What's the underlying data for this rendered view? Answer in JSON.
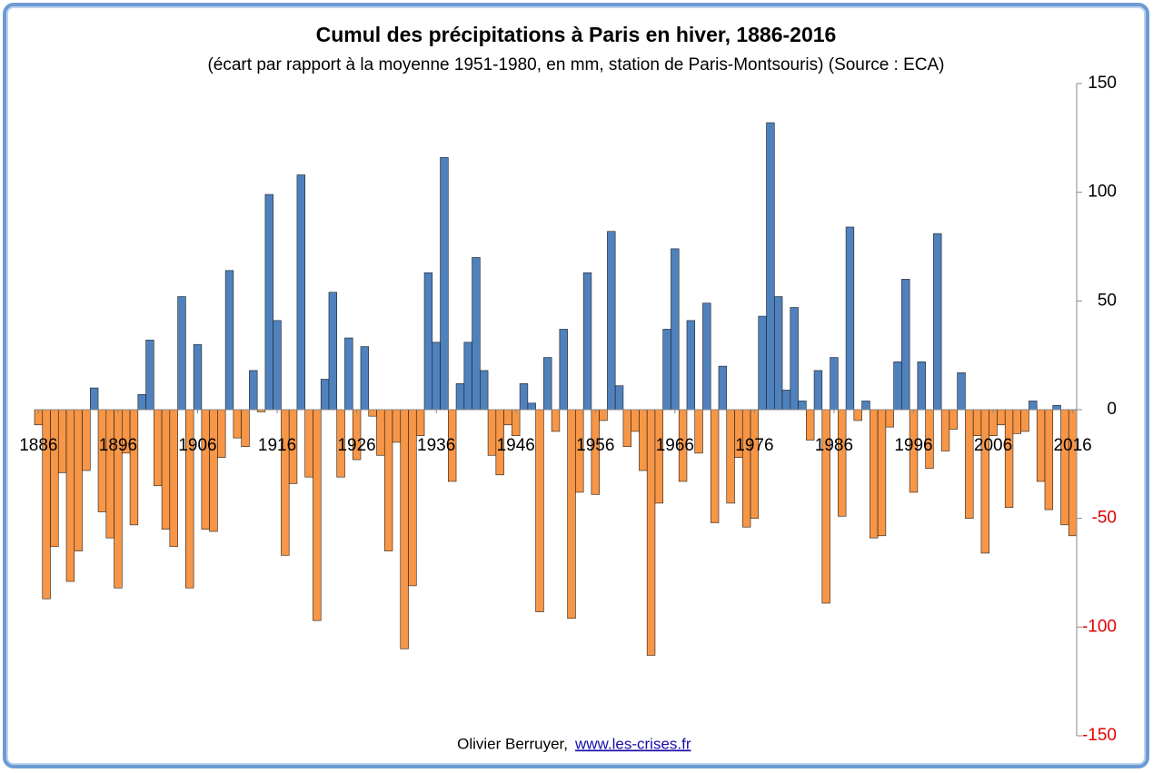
{
  "chart_data": {
    "type": "bar",
    "title": "Cumul des précipitations à Paris en hiver, 1886-2016",
    "subtitle": "(écart par rapport à la moyenne 1951-1980,  en mm, station de Paris-Montsouris) (Source : ECA)",
    "source": "Olivier Berruyer,",
    "link": "www.les-crises.fr",
    "x": [
      1886,
      1887,
      1888,
      1889,
      1890,
      1891,
      1892,
      1893,
      1894,
      1895,
      1896,
      1897,
      1898,
      1899,
      1900,
      1901,
      1902,
      1903,
      1904,
      1905,
      1906,
      1907,
      1908,
      1909,
      1910,
      1911,
      1912,
      1913,
      1914,
      1915,
      1916,
      1917,
      1918,
      1919,
      1920,
      1921,
      1922,
      1923,
      1924,
      1925,
      1926,
      1927,
      1928,
      1929,
      1930,
      1931,
      1932,
      1933,
      1934,
      1935,
      1936,
      1937,
      1938,
      1939,
      1940,
      1941,
      1942,
      1943,
      1944,
      1945,
      1946,
      1947,
      1948,
      1949,
      1950,
      1951,
      1952,
      1953,
      1954,
      1955,
      1956,
      1957,
      1958,
      1959,
      1960,
      1961,
      1962,
      1963,
      1964,
      1965,
      1966,
      1967,
      1968,
      1969,
      1970,
      1971,
      1972,
      1973,
      1974,
      1975,
      1976,
      1977,
      1978,
      1979,
      1980,
      1981,
      1982,
      1983,
      1984,
      1985,
      1986,
      1987,
      1988,
      1989,
      1990,
      1991,
      1992,
      1993,
      1994,
      1995,
      1996,
      1997,
      1998,
      1999,
      2000,
      2001,
      2002,
      2003,
      2004,
      2005,
      2006,
      2007,
      2008,
      2009,
      2010,
      2011,
      2012,
      2013,
      2014,
      2015,
      2016
    ],
    "values": [
      -7,
      -87,
      -63,
      -29,
      -79,
      -65,
      -28,
      10,
      -47,
      -59,
      -82,
      -20,
      -53,
      7,
      32,
      -35,
      -55,
      -63,
      52,
      -82,
      30,
      -55,
      -56,
      -22,
      64,
      -13,
      -17,
      18,
      -1,
      99,
      41,
      -67,
      -34,
      108,
      -31,
      -97,
      14,
      54,
      -31,
      33,
      -23,
      29,
      -3,
      -21,
      -65,
      -15,
      -110,
      -81,
      -12,
      63,
      31,
      116,
      -33,
      12,
      31,
      70,
      18,
      -21,
      -30,
      -7,
      -12,
      12,
      3,
      -93,
      24,
      -10,
      37,
      -96,
      -38,
      63,
      -39,
      -5,
      82,
      11,
      -17,
      -10,
      -28,
      -113,
      -43,
      37,
      74,
      -33,
      41,
      -20,
      49,
      -52,
      20,
      -43,
      -22,
      -54,
      -50,
      43,
      132,
      52,
      9,
      47,
      4,
      -14,
      18,
      -89,
      24,
      -49,
      84,
      -5,
      4,
      -59,
      -58,
      -8,
      22,
      60,
      -38,
      22,
      -27,
      81,
      -19,
      -9,
      17,
      -50,
      -12,
      -66,
      -12,
      -7,
      -45,
      -11,
      -10,
      4,
      -33,
      -46,
      2,
      -53,
      -58
    ],
    "positive_color": "#4f81bd",
    "negative_color": "#f79646",
    "negative_tick_color": "#e00000",
    "xlim": [
      1885.5,
      2016.5
    ],
    "xticks": [
      1886,
      1896,
      1906,
      1916,
      1926,
      1936,
      1946,
      1956,
      1966,
      1976,
      1986,
      1996,
      2006,
      2016
    ],
    "ylim": [
      -150,
      150
    ],
    "yticks": [
      -150,
      -100,
      -50,
      0,
      50,
      100,
      150
    ]
  }
}
